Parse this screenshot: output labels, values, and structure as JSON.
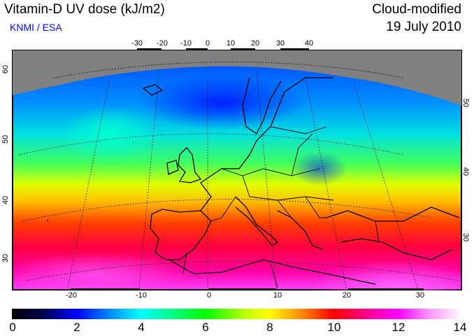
{
  "header": {
    "title": "Vitamin-D UV dose (kJ/m2)",
    "credit": "KNMI / ESA",
    "variant": "Cloud-modified",
    "date": "19 July 2010"
  },
  "axes": {
    "top_lon_ticks": [
      "-30",
      "-20",
      "-10",
      "0",
      "10",
      "20",
      "30",
      "40"
    ],
    "bottom_lon_ticks": [
      "-20",
      "-10",
      "0",
      "10",
      "20",
      "30"
    ],
    "left_lat_ticks": [
      "60",
      "50",
      "40",
      "30"
    ],
    "right_lat_ticks": [
      "50",
      "40",
      "30"
    ]
  },
  "colorbar": {
    "labels": [
      "0",
      "2",
      "4",
      "6",
      "8",
      "10",
      "12",
      "14"
    ],
    "min": 0,
    "max": 14,
    "colors": [
      "#000000",
      "#0000ff",
      "#00ffff",
      "#00ff00",
      "#ffff00",
      "#ff0000",
      "#ff00ff",
      "#ffffff"
    ]
  },
  "map": {
    "no_data_color": "#808080"
  }
}
